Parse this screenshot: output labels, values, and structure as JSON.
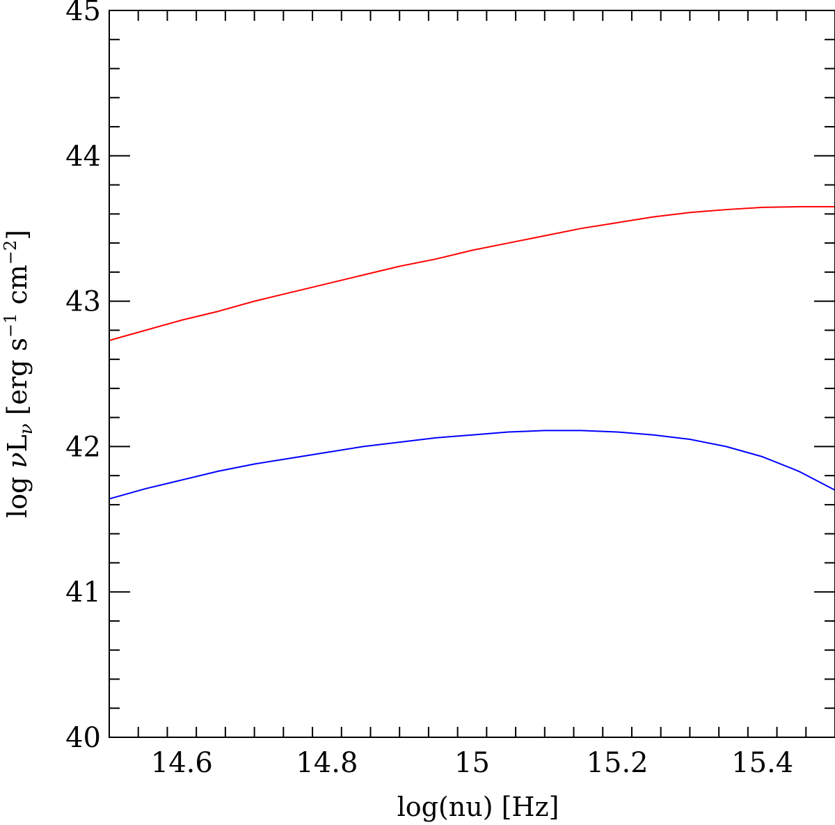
{
  "chart_data": {
    "type": "line",
    "title": "",
    "xlabel": "log(nu) [Hz]",
    "ylabel": "log νLν [erg s⁻¹ cm⁻²]",
    "ylabel_parts": {
      "prefix": "log ",
      "nu": "ν",
      "L": "L",
      "sub": "ν",
      "units_open": " [erg s",
      "exp1": "−1",
      "units_mid": " cm",
      "exp2": "−2",
      "units_close": "]"
    },
    "xlim": [
      14.5,
      15.5
    ],
    "ylim": [
      40,
      45
    ],
    "xticks": [
      14.6,
      14.8,
      15,
      15.2,
      15.4
    ],
    "xtick_labels": [
      "14.6",
      "14.8",
      "15",
      "15.2",
      "15.4"
    ],
    "x_minor_step": 0.04,
    "yticks": [
      40,
      41,
      42,
      43,
      44,
      45
    ],
    "ytick_labels": [
      "40",
      "41",
      "42",
      "43",
      "44",
      "45"
    ],
    "y_minor_step": 0.2,
    "grid": false,
    "legend": "none",
    "series": [
      {
        "color": "#ff0000",
        "x": [
          14.5,
          14.55,
          14.6,
          14.65,
          14.7,
          14.75,
          14.8,
          14.85,
          14.9,
          14.95,
          15.0,
          15.05,
          15.1,
          15.15,
          15.2,
          15.25,
          15.3,
          15.35,
          15.4,
          15.45,
          15.5
        ],
        "y": [
          42.73,
          42.8,
          42.87,
          42.93,
          43.0,
          43.06,
          43.12,
          43.18,
          43.24,
          43.29,
          43.35,
          43.4,
          43.45,
          43.5,
          43.54,
          43.58,
          43.61,
          43.63,
          43.645,
          43.65,
          43.65
        ]
      },
      {
        "color": "#0000ff",
        "x": [
          14.5,
          14.55,
          14.6,
          14.65,
          14.7,
          14.75,
          14.8,
          14.85,
          14.9,
          14.95,
          15.0,
          15.05,
          15.1,
          15.15,
          15.2,
          15.25,
          15.3,
          15.35,
          15.4,
          15.45,
          15.5
        ],
        "y": [
          41.64,
          41.71,
          41.77,
          41.83,
          41.88,
          41.92,
          41.96,
          42.0,
          42.03,
          42.06,
          42.08,
          42.1,
          42.11,
          42.11,
          42.1,
          42.08,
          42.05,
          42.0,
          41.93,
          41.83,
          41.7
        ]
      }
    ]
  }
}
